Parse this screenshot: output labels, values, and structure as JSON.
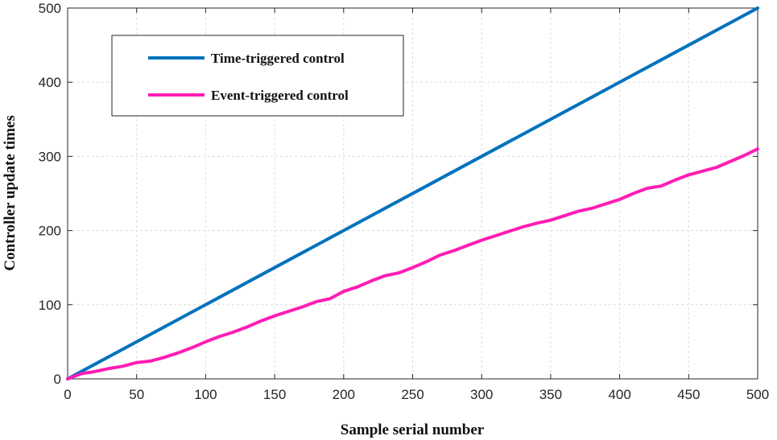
{
  "chart_data": {
    "type": "line",
    "xlabel": "Sample serial number",
    "ylabel": "Controller update times",
    "xlim": [
      0,
      500
    ],
    "ylim": [
      0,
      500
    ],
    "xticks": [
      0,
      50,
      100,
      150,
      200,
      250,
      300,
      350,
      400,
      450,
      500
    ],
    "yticks": [
      0,
      100,
      200,
      300,
      400,
      500
    ],
    "grid": true,
    "legend_position": "top-left",
    "series": [
      {
        "name": "Time-triggered control",
        "color": "#0072BD",
        "x": [
          0,
          500
        ],
        "y": [
          0,
          500
        ]
      },
      {
        "name": "Event-triggered control",
        "color": "#FF1DB4",
        "x": [
          0,
          10,
          20,
          30,
          40,
          50,
          60,
          70,
          80,
          90,
          100,
          110,
          120,
          130,
          140,
          150,
          160,
          170,
          180,
          190,
          200,
          210,
          220,
          230,
          240,
          250,
          260,
          270,
          280,
          290,
          300,
          310,
          320,
          330,
          340,
          350,
          360,
          370,
          380,
          390,
          400,
          410,
          420,
          430,
          440,
          450,
          460,
          470,
          480,
          490,
          500
        ],
        "y": [
          0,
          7,
          10,
          14,
          17,
          22,
          24,
          29,
          35,
          42,
          50,
          57,
          63,
          70,
          78,
          85,
          91,
          97,
          104,
          108,
          118,
          124,
          132,
          139,
          143,
          150,
          158,
          167,
          173,
          180,
          187,
          193,
          199,
          205,
          210,
          214,
          220,
          226,
          230,
          236,
          242,
          250,
          257,
          260,
          268,
          275,
          280,
          285,
          293,
          301,
          310
        ]
      }
    ]
  }
}
